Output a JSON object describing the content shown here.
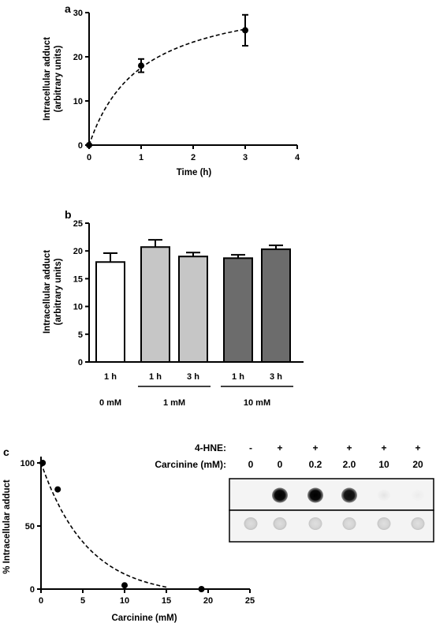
{
  "panel_labels": {
    "a": "a",
    "b": "b",
    "c": "c"
  },
  "chart_data": [
    {
      "panel": "a",
      "type": "scatter",
      "xlabel": "Time (h)",
      "ylabel_line1": "Intracellular adduct",
      "ylabel_line2": "(arbitrary units)",
      "xlim": [
        0,
        4
      ],
      "ylim": [
        0,
        30
      ],
      "xticks": [
        0,
        1,
        2,
        3,
        4
      ],
      "yticks": [
        0,
        10,
        20,
        30
      ],
      "points": [
        {
          "x": 0,
          "y": 0,
          "err": 0
        },
        {
          "x": 1,
          "y": 18,
          "err": 1.5
        },
        {
          "x": 3,
          "y": 26,
          "err": 3.5
        }
      ],
      "fit": {
        "style": "dashed",
        "model": "saturation",
        "ymax": 35,
        "half": 1
      }
    },
    {
      "panel": "b",
      "type": "bar",
      "ylabel_line1": "Intracellular adduct",
      "ylabel_line2": "(arbitrary units)",
      "ylim": [
        0,
        25
      ],
      "yticks": [
        0,
        5,
        10,
        15,
        20,
        25
      ],
      "categories": [
        "1 h",
        "1 h",
        "3 h",
        "1 h",
        "3 h"
      ],
      "values": [
        18,
        20.7,
        19,
        18.7,
        20.3
      ],
      "errors": [
        1.6,
        1.3,
        0.7,
        0.6,
        0.7
      ],
      "colors": [
        "#ffffff",
        "#c6c6c6",
        "#c6c6c6",
        "#6c6c6c",
        "#6c6c6c"
      ],
      "groups": [
        {
          "label": "0 mM",
          "bars": [
            0
          ],
          "bracket": false
        },
        {
          "label": "1 mM",
          "bars": [
            1,
            2
          ],
          "bracket": true
        },
        {
          "label": "10 mM",
          "bars": [
            3,
            4
          ],
          "bracket": true
        }
      ]
    },
    {
      "panel": "c",
      "type": "scatter",
      "xlabel": "Carcinine (mM)",
      "ylabel": "% Intracellular adduct",
      "xlim": [
        0,
        25
      ],
      "ylim": [
        0,
        100
      ],
      "xticks": [
        0,
        5,
        10,
        15,
        20,
        25
      ],
      "yticks": [
        0,
        50,
        100
      ],
      "points": [
        {
          "x": 0.2,
          "y": 100
        },
        {
          "x": 2,
          "y": 79
        },
        {
          "x": 10,
          "y": 3
        },
        {
          "x": 19.2,
          "y": 0
        }
      ],
      "fit": {
        "style": "dashed",
        "model": "decay",
        "y0": 100,
        "k": 0.18,
        "offset": -5.5
      }
    }
  ],
  "blot": {
    "row1_label": "4-HNE:",
    "row2_label": "Carcinine (mM):",
    "hne": [
      "-",
      "+",
      "+",
      "+",
      "+",
      "+"
    ],
    "carcinine": [
      "0",
      "0",
      "0.2",
      "2.0",
      "10",
      "20"
    ],
    "top_intensity": [
      0,
      1,
      1,
      0.95,
      0.06,
      0.03
    ],
    "bottom_intensity": [
      0.3,
      0.3,
      0.28,
      0.28,
      0.28,
      0.28
    ]
  }
}
